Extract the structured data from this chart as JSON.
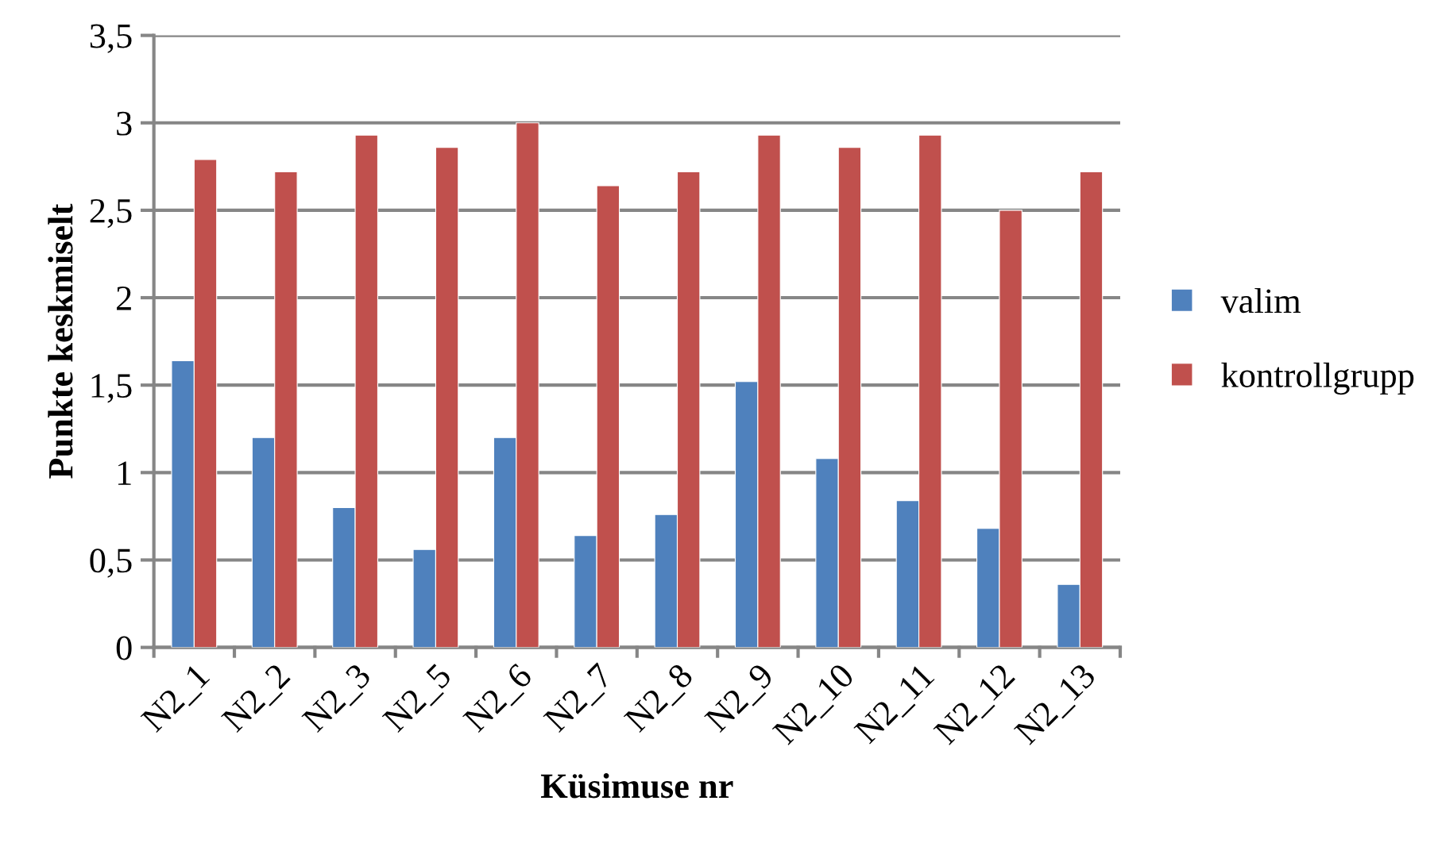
{
  "chart_data": {
    "type": "bar",
    "xlabel": "Küsimuse nr",
    "ylabel": "Punkte keskmiselt",
    "categories": [
      "N2_1",
      "N2_2",
      "N2_3",
      "N2_5",
      "N2_6",
      "N2_7",
      "N2_8",
      "N2_9",
      "N2_10",
      "N2_11",
      "N2_12",
      "N2_13"
    ],
    "series": [
      {
        "name": "valim",
        "color": "#4f81bd",
        "values": [
          1.64,
          1.2,
          0.8,
          0.56,
          1.2,
          0.64,
          0.76,
          1.52,
          1.08,
          0.84,
          0.68,
          0.36
        ]
      },
      {
        "name": "kontrollgrupp",
        "color": "#c0504d",
        "values": [
          2.79,
          2.72,
          2.93,
          2.86,
          3.0,
          2.64,
          2.72,
          2.93,
          2.86,
          2.93,
          2.5,
          2.72
        ]
      }
    ],
    "ylim": [
      0,
      3.5
    ],
    "yticks": [
      {
        "value": 0,
        "label": "0"
      },
      {
        "value": 0.5,
        "label": "0,5"
      },
      {
        "value": 1,
        "label": "1"
      },
      {
        "value": 1.5,
        "label": "1,5"
      },
      {
        "value": 2,
        "label": "2"
      },
      {
        "value": 2.5,
        "label": "2,5"
      },
      {
        "value": 3,
        "label": "3"
      },
      {
        "value": 3.5,
        "label": "3,5"
      }
    ],
    "grid": "y",
    "legend": "right"
  }
}
